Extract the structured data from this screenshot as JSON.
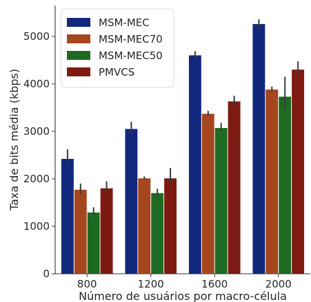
{
  "chart_data": {
    "type": "bar",
    "xlabel": "Número de usuários por macro-célula",
    "ylabel": "Taxa de bits média (kbps)",
    "categories": [
      "800",
      "1200",
      "1600",
      "2000"
    ],
    "ylim": [
      0,
      5650
    ],
    "yticks": [
      "0",
      "1000",
      "2000",
      "3000",
      "4000",
      "5000"
    ],
    "grid": false,
    "legend_position": "top-left",
    "series": [
      {
        "name": "MSM-MEC",
        "color": "#12287d",
        "values": [
          2420,
          3050,
          4600,
          5260
        ],
        "err_low": [
          2330,
          2930,
          4530,
          5180
        ],
        "err_high": [
          2620,
          3200,
          4690,
          5360
        ]
      },
      {
        "name": "MSM-MEC70",
        "color": "#a5461e",
        "values": [
          1770,
          2010,
          3370,
          3880
        ],
        "err_low": [
          1680,
          1980,
          3330,
          3840
        ],
        "err_high": [
          1900,
          2050,
          3430,
          3940
        ]
      },
      {
        "name": "MSM-MEC50",
        "color": "#1d6b22",
        "values": [
          1290,
          1700,
          3070,
          3730
        ],
        "err_low": [
          1230,
          1640,
          3000,
          3480
        ],
        "err_high": [
          1400,
          1790,
          3180,
          4150
        ]
      },
      {
        "name": "PMVCS",
        "color": "#7d1a12",
        "values": [
          1800,
          2010,
          3630,
          4300
        ],
        "err_low": [
          1700,
          1880,
          3540,
          4200
        ],
        "err_high": [
          1950,
          2230,
          3750,
          4470
        ]
      }
    ]
  }
}
